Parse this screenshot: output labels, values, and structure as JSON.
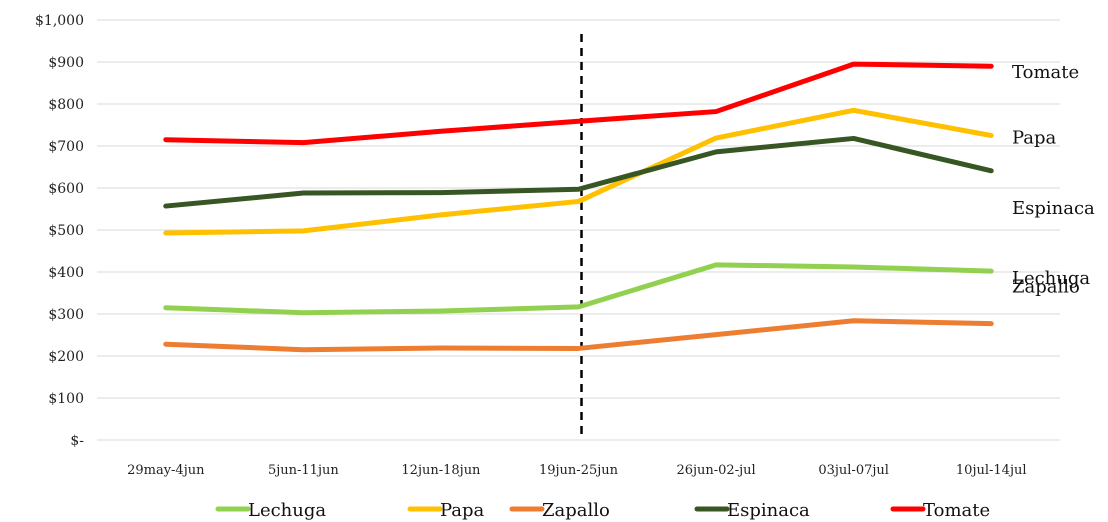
{
  "chart_data": {
    "type": "line",
    "categories": [
      "29may-4jun",
      "5jun-11jun",
      "12jun-18jun",
      "19jun-25jun",
      "26jun-02-jul",
      "03jul-07jul",
      "10jul-14jul"
    ],
    "y_tick_labels": [
      "$-",
      "$100",
      "$200",
      "$300",
      "$400",
      "$500",
      "$600",
      "$700",
      "$800",
      "$900",
      "$1,000"
    ],
    "ylim": [
      0,
      1000
    ],
    "y_step": 100,
    "grid": true,
    "legend_position": "bottom",
    "marker_after_category": "19jun-25jun",
    "series": [
      {
        "name": "Lechuga",
        "color": "#92d050",
        "values": [
          315,
          303,
          307,
          317,
          417,
          412,
          402
        ]
      },
      {
        "name": "Papa",
        "color": "#ffc000",
        "values": [
          493,
          498,
          536,
          568,
          719,
          785,
          725
        ]
      },
      {
        "name": "Zapallo",
        "color": "#ed7d31",
        "values": [
          228,
          215,
          219,
          218,
          251,
          284,
          277
        ]
      },
      {
        "name": "Espinaca",
        "color": "#375623",
        "values": [
          557,
          588,
          589,
          597,
          686,
          718,
          641
        ]
      },
      {
        "name": "Tomate",
        "color": "#ff0000",
        "values": [
          715,
          708,
          735,
          759,
          782,
          895,
          890
        ]
      }
    ],
    "end_labels": [
      {
        "series": "Tomate",
        "text": "Tomate"
      },
      {
        "series": "Papa",
        "text": "Papa"
      },
      {
        "series": "Espinaca",
        "text": "Espinaca"
      },
      {
        "series": "Lechuga",
        "text": "Lechuga"
      },
      {
        "series": "Zapallo",
        "text": "Zapallo"
      }
    ]
  }
}
